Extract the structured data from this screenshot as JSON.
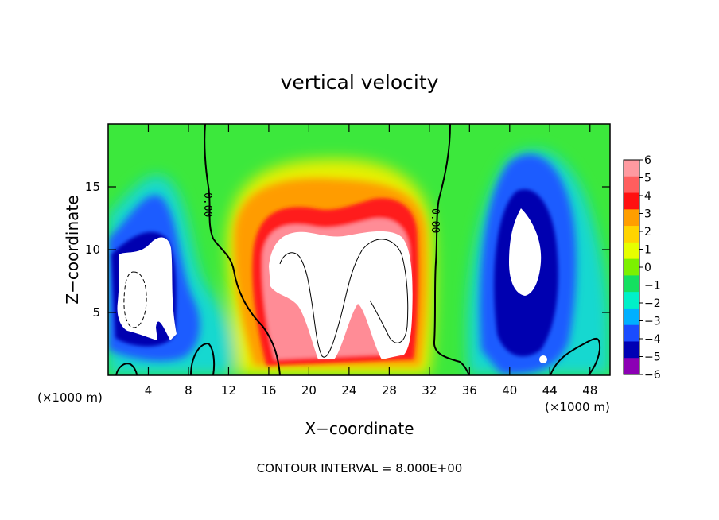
{
  "chart_data": {
    "type": "heatmap",
    "title": "vertical velocity",
    "xlabel": "X−coordinate",
    "ylabel": "Z−coordinate",
    "x_unit_left": "(×1000 m)",
    "x_unit_right": "(×1000 m)",
    "xlim": [
      0,
      50
    ],
    "ylim": [
      0,
      20
    ],
    "x_ticks": [
      4,
      8,
      12,
      16,
      20,
      24,
      28,
      32,
      36,
      40,
      44,
      48
    ],
    "x_tick_labels": [
      "4",
      "8",
      "12",
      "16",
      "20",
      "24",
      "28",
      "32",
      "36",
      "40",
      "44",
      "48"
    ],
    "y_ticks": [
      5,
      10,
      15
    ],
    "y_tick_labels": [
      "5",
      "10",
      "15"
    ],
    "colorbar": {
      "levels": [
        6,
        5,
        4,
        3,
        2,
        1,
        0,
        -1,
        -2,
        -3,
        -4,
        -5,
        -6
      ],
      "labels": [
        "6",
        "5",
        "4",
        "3",
        "2",
        "1",
        "0",
        "−1",
        "−2",
        "−3",
        "−4",
        "−5",
        "−6"
      ],
      "colors": [
        "#ff9aa0",
        "#ff5e5e",
        "#ff1010",
        "#ff9e00",
        "#ffd400",
        "#e6ff00",
        "#7cf000",
        "#14e060",
        "#00f0c8",
        "#00b0ff",
        "#1a4cff",
        "#0000b4",
        "#8c00b4"
      ]
    },
    "contour_label": "0.00",
    "annotation": "CONTOUR INTERVAL = 8.000E+00",
    "features": [
      {
        "kind": "updraft",
        "x": 20.5,
        "z": 7.5,
        "value": 8
      },
      {
        "kind": "updraft",
        "x": 26.5,
        "z": 7.5,
        "value": 8
      },
      {
        "kind": "downdraft",
        "x": 41.5,
        "z": 10.5,
        "value": -8
      },
      {
        "kind": "downdraft",
        "x": 3.0,
        "z": 7.0,
        "value": -8
      }
    ],
    "grid": false,
    "legend": "colorbar-right"
  }
}
